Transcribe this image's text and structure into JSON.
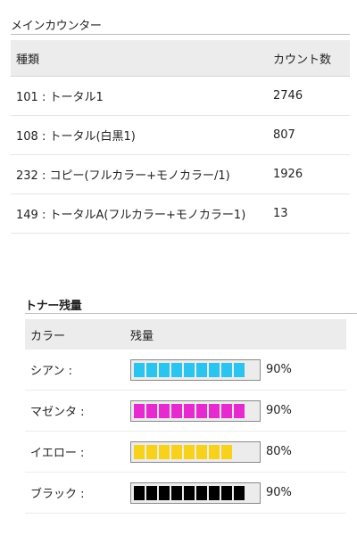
{
  "counter": {
    "title": "メインカウンター",
    "headers": {
      "name": "種類",
      "count": "カウント数"
    },
    "rows": [
      {
        "name": "101 : トータル1",
        "count": "2746"
      },
      {
        "name": "108 : トータル(白黒1)",
        "count": "807"
      },
      {
        "name": "232 : コピー(フルカラー+モノカラー/1)",
        "count": "1926"
      },
      {
        "name": "149 : トータルA(フルカラー+モノカラー1)",
        "count": "13"
      }
    ]
  },
  "toner": {
    "title": "トナー残量",
    "headers": {
      "color": "カラー",
      "level": "残量"
    },
    "rows": [
      {
        "name": "シアン :",
        "level": 90,
        "label": "90%",
        "color": "#29c4ef"
      },
      {
        "name": "マゼンタ :",
        "level": 90,
        "label": "90%",
        "color": "#e62ad0"
      },
      {
        "name": "イエロー :",
        "level": 80,
        "label": "80%",
        "color": "#f8d21a"
      },
      {
        "name": "ブラック :",
        "level": 90,
        "label": "90%",
        "color": "#000000"
      }
    ]
  }
}
